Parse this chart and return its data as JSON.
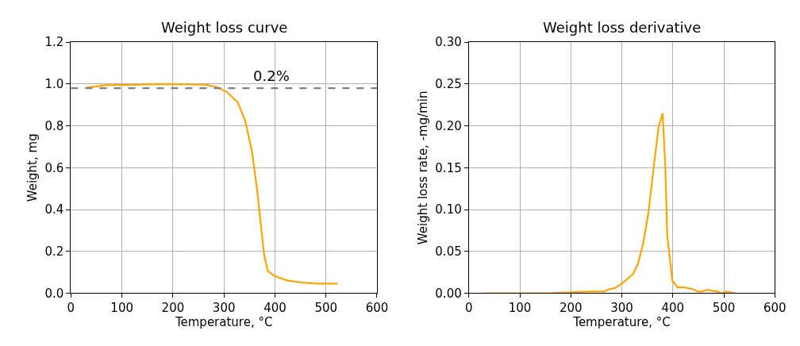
{
  "chart_data": [
    {
      "type": "line",
      "title": "Weight loss curve",
      "xlabel": "Temperature, °C",
      "ylabel": "Weight, mg",
      "x": [
        29,
        67,
        118,
        174,
        220,
        266,
        286,
        306,
        327,
        342,
        355,
        365,
        373,
        379,
        386,
        399,
        424,
        449,
        480,
        523
      ],
      "series": [
        {
          "color": "#ffa500",
          "values": [
            0.982,
            0.994,
            0.996,
            1.0,
            0.999,
            0.996,
            0.985,
            0.961,
            0.913,
            0.822,
            0.676,
            0.495,
            0.313,
            0.179,
            0.107,
            0.082,
            0.061,
            0.052,
            0.046,
            0.046
          ]
        }
      ],
      "ref_lines": [
        {
          "axis": "y",
          "value": 0.98,
          "color": "#808080",
          "line_style": "dashed"
        }
      ],
      "annotations": [
        "0.2%"
      ],
      "xlim": [
        0,
        600
      ],
      "xticks": [
        0,
        100,
        200,
        300,
        400,
        500,
        600
      ],
      "ylim": [
        0,
        1.2
      ],
      "yticks": [
        {
          "value": 0,
          "label": "0.0"
        },
        0.2,
        0.4,
        0.6,
        0.8,
        {
          "value": 1,
          "label": "1.0"
        },
        1.2
      ],
      "grid": true,
      "marker": "none",
      "line_style": "solid"
    },
    {
      "type": "line",
      "title": "Weight loss derivative",
      "xlabel": "Temperature, °C",
      "ylabel": "Weight loss rate, -mg/min",
      "x": [
        29,
        154,
        235,
        265,
        276,
        286,
        301,
        322,
        332,
        342,
        352,
        362,
        372,
        380,
        385,
        389,
        399,
        409,
        421,
        439,
        449,
        457,
        467,
        487,
        495,
        505,
        523
      ],
      "series": [
        {
          "color": "#ffa500",
          "values": [
            0,
            0,
            0.002,
            0.002,
            0.005,
            0.006,
            0.012,
            0.023,
            0.036,
            0.06,
            0.096,
            0.148,
            0.199,
            0.215,
            0.154,
            0.069,
            0.015,
            0.007,
            0.007,
            0.005,
            0.002,
            0.002,
            0.004,
            0.002,
            0,
            0.002,
            0
          ]
        }
      ],
      "xlim": [
        0,
        600
      ],
      "xticks": [
        0,
        100,
        200,
        300,
        400,
        500,
        600
      ],
      "ylim": [
        0,
        0.3
      ],
      "yticks": [
        {
          "value": 0,
          "label": "0.00"
        },
        {
          "value": 0.05,
          "label": "0.05"
        },
        {
          "value": 0.1,
          "label": "0.10"
        },
        {
          "value": 0.15,
          "label": "0.15"
        },
        {
          "value": 0.2,
          "label": "0.20"
        },
        {
          "value": 0.25,
          "label": "0.25"
        },
        {
          "value": 0.3,
          "label": "0.30"
        }
      ],
      "grid": true,
      "marker": "none",
      "line_style": "solid"
    }
  ]
}
